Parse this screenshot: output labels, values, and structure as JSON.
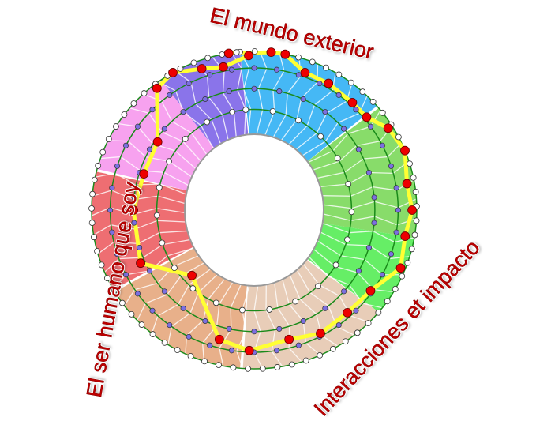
{
  "labels": {
    "top": "El mundo exterior",
    "left": "El ser humano que soy",
    "bottom_right": "Interacciones et impacto"
  },
  "colors": {
    "label_text": "#c00000",
    "ring_lines": "#1a8a1a",
    "path": "#ffff33",
    "path_nodes": "#ee0000",
    "inner_nodes": "#7b6fe0",
    "outer_nodes": "#ffffff",
    "sectors": [
      "#45b8f5",
      "#88dc6a",
      "#66ee66",
      "#e8cdb8",
      "#e8b08a",
      "#ee6e72",
      "#f7a2ef",
      "#8a74ea"
    ]
  }
}
